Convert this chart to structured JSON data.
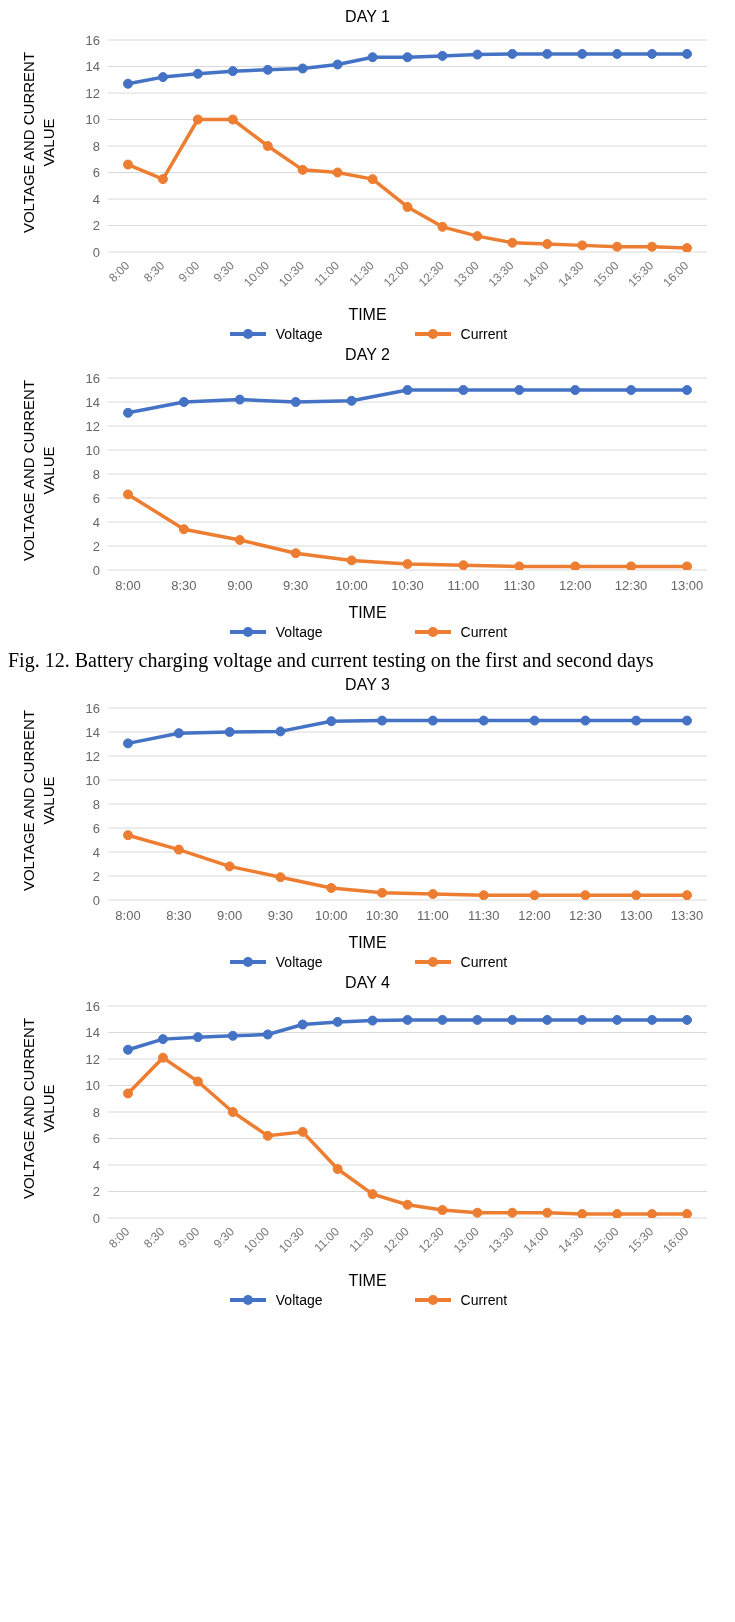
{
  "chart_data": [
    {
      "type": "line",
      "title": "DAY 1",
      "xlabel": "TIME",
      "ylabel": "VOLTAGE AND CURRENT VALUE",
      "categories": [
        "8:00",
        "8:30",
        "9:00",
        "9:30",
        "10:00",
        "10:30",
        "11:00",
        "11:30",
        "12:00",
        "12:30",
        "13:00",
        "13:30",
        "14:00",
        "14:30",
        "15:00",
        "15:30",
        "16:00"
      ],
      "series": [
        {
          "name": "Voltage",
          "color": "#4472c4",
          "values": [
            12.7,
            13.2,
            13.45,
            13.65,
            13.75,
            13.85,
            14.15,
            14.7,
            14.7,
            14.8,
            14.9,
            14.95,
            14.95,
            14.95,
            14.95,
            14.95,
            14.95
          ]
        },
        {
          "name": "Current",
          "color": "#ed7d31",
          "values": [
            6.6,
            5.5,
            10,
            10,
            8,
            6.2,
            6,
            5.5,
            3.4,
            1.9,
            1.2,
            0.7,
            0.6,
            0.5,
            0.4,
            0.4,
            0.3
          ]
        }
      ],
      "ylim": [
        0,
        16
      ],
      "yticks": [
        0,
        2,
        4,
        6,
        8,
        10,
        12,
        14,
        16
      ],
      "grid": "y",
      "legend": "bottom",
      "marker": "circle",
      "line_style": "solid"
    },
    {
      "type": "line",
      "title": "DAY 2",
      "xlabel": "TIME",
      "ylabel": "VOLTAGE AND CURRENT VALUE",
      "categories": [
        "8:00",
        "8:30",
        "9:00",
        "9:30",
        "10:00",
        "10:30",
        "11:00",
        "11:30",
        "12:00",
        "12:30",
        "13:00"
      ],
      "series": [
        {
          "name": "Voltage",
          "color": "#4472c4",
          "values": [
            13.1,
            14,
            14.2,
            14,
            14.1,
            15,
            15,
            15,
            15,
            15,
            15
          ]
        },
        {
          "name": "Current",
          "color": "#ed7d31",
          "values": [
            6.3,
            3.4,
            2.5,
            1.4,
            0.8,
            0.5,
            0.4,
            0.3,
            0.3,
            0.3,
            0.3
          ]
        }
      ],
      "ylim": [
        0,
        16
      ],
      "yticks": [
        0,
        2,
        4,
        6,
        8,
        10,
        12,
        14,
        16
      ],
      "grid": "y",
      "legend": "bottom",
      "marker": "circle",
      "line_style": "solid",
      "annotations": [
        "Fig. 12. Battery charging voltage and current testing on the first and second days"
      ]
    },
    {
      "type": "line",
      "title": "DAY 3",
      "xlabel": "TIME",
      "ylabel": "VOLTAGE AND CURRENT VALUE",
      "categories": [
        "8:00",
        "8:30",
        "9:00",
        "9:30",
        "10:00",
        "10:30",
        "11:00",
        "11:30",
        "12:00",
        "12:30",
        "13:00",
        "13:30"
      ],
      "series": [
        {
          "name": "Voltage",
          "color": "#4472c4",
          "values": [
            13.05,
            13.9,
            14,
            14.05,
            14.9,
            14.95,
            14.95,
            14.95,
            14.95,
            14.95,
            14.95,
            14.95
          ]
        },
        {
          "name": "Current",
          "color": "#ed7d31",
          "values": [
            5.4,
            4.2,
            2.8,
            1.9,
            1.0,
            0.6,
            0.5,
            0.4,
            0.4,
            0.4,
            0.4,
            0.4
          ]
        }
      ],
      "ylim": [
        0,
        16
      ],
      "yticks": [
        0,
        2,
        4,
        6,
        8,
        10,
        12,
        14,
        16
      ],
      "grid": "y",
      "legend": "bottom",
      "marker": "circle",
      "line_style": "solid"
    },
    {
      "type": "line",
      "title": "DAY 4",
      "xlabel": "TIME",
      "ylabel": "VOLTAGE AND CURRENT VALUE",
      "categories": [
        "8:00",
        "8:30",
        "9:00",
        "9:30",
        "10:00",
        "10:30",
        "11:00",
        "11:30",
        "12:00",
        "12:30",
        "13:00",
        "13:30",
        "14:00",
        "14:30",
        "15:00",
        "15:30",
        "16:00"
      ],
      "series": [
        {
          "name": "Voltage",
          "color": "#4472c4",
          "values": [
            12.7,
            13.5,
            13.65,
            13.75,
            13.85,
            14.6,
            14.8,
            14.9,
            14.95,
            14.95,
            14.95,
            14.95,
            14.95,
            14.95,
            14.95,
            14.95,
            14.95
          ]
        },
        {
          "name": "Current",
          "color": "#ed7d31",
          "values": [
            9.4,
            12.1,
            10.3,
            8,
            6.2,
            6.5,
            3.7,
            1.8,
            1,
            0.6,
            0.4,
            0.4,
            0.4,
            0.3,
            0.3,
            0.3,
            0.3
          ]
        }
      ],
      "ylim": [
        0,
        16
      ],
      "yticks": [
        0,
        2,
        4,
        6,
        8,
        10,
        12,
        14,
        16
      ],
      "grid": "y",
      "legend": "bottom",
      "marker": "circle",
      "line_style": "solid"
    }
  ]
}
